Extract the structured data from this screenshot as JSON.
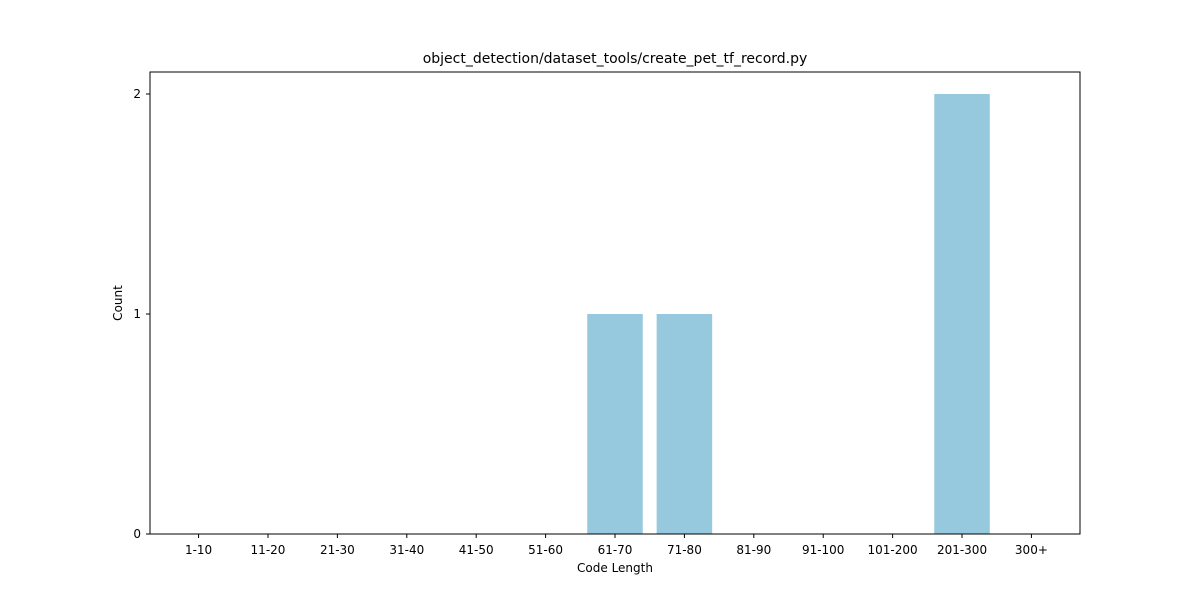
{
  "chart_data": {
    "type": "bar",
    "title": "object_detection/dataset_tools/create_pet_tf_record.py",
    "xlabel": "Code Length",
    "ylabel": "Count",
    "categories": [
      "1-10",
      "11-20",
      "21-30",
      "31-40",
      "41-50",
      "51-60",
      "61-70",
      "71-80",
      "81-90",
      "91-100",
      "101-200",
      "201-300",
      "300+"
    ],
    "values": [
      0,
      0,
      0,
      0,
      0,
      0,
      1,
      1,
      0,
      0,
      0,
      2,
      0
    ],
    "ylim": [
      0,
      2.1
    ],
    "yticks": [
      0,
      1,
      2
    ],
    "grid": false,
    "bar_color": "#96c9dd"
  }
}
